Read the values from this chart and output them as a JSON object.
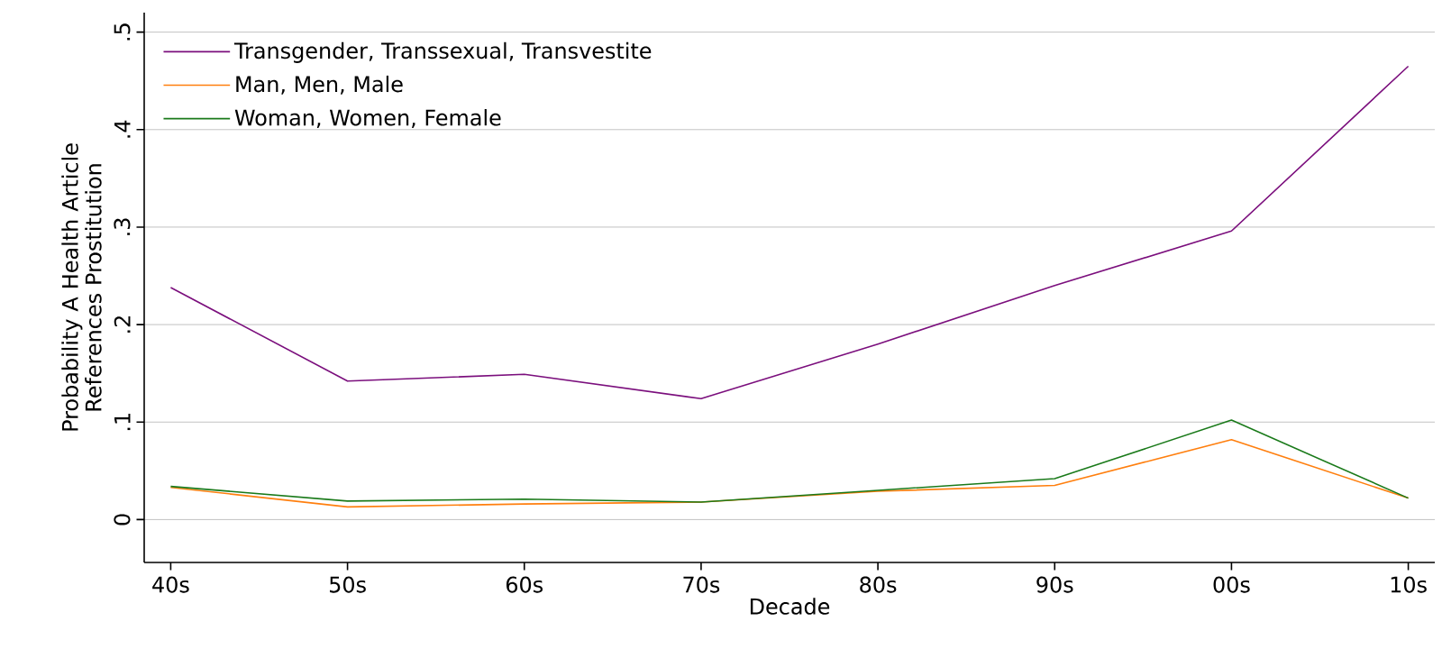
{
  "chart_data": {
    "type": "line",
    "xlabel": "Decade",
    "ylabel": "Probability A Health Article References Prostitution",
    "categories": [
      "40s",
      "50s",
      "60s",
      "70s",
      "80s",
      "90s",
      "00s",
      "10s"
    ],
    "series": [
      {
        "name": "Transgender, Transsexual, Transvestite",
        "color": "#7b0f7d",
        "values": [
          0.238,
          0.142,
          0.149,
          0.124,
          0.18,
          0.24,
          0.296,
          0.465
        ]
      },
      {
        "name": "Man, Men, Male",
        "color": "#ff7f0e",
        "values": [
          0.033,
          0.013,
          0.016,
          0.018,
          0.029,
          0.035,
          0.082,
          0.022
        ]
      },
      {
        "name": "Woman, Women, Female",
        "color": "#1a7a1a",
        "values": [
          0.034,
          0.019,
          0.021,
          0.018,
          0.03,
          0.042,
          0.102,
          0.022
        ]
      }
    ],
    "ylim": [
      -0.044,
      0.52
    ],
    "yticks": [
      0,
      {
        "value": 0.1,
        "label": ".1"
      },
      {
        "value": 0.2,
        "label": ".2"
      },
      {
        "value": 0.3,
        "label": ".3"
      },
      {
        "value": 0.4,
        "label": ".4"
      },
      {
        "value": 0.5,
        "label": ".5"
      }
    ],
    "grid": "y",
    "legend": "top left",
    "marker": "none",
    "line_style": "solid"
  }
}
